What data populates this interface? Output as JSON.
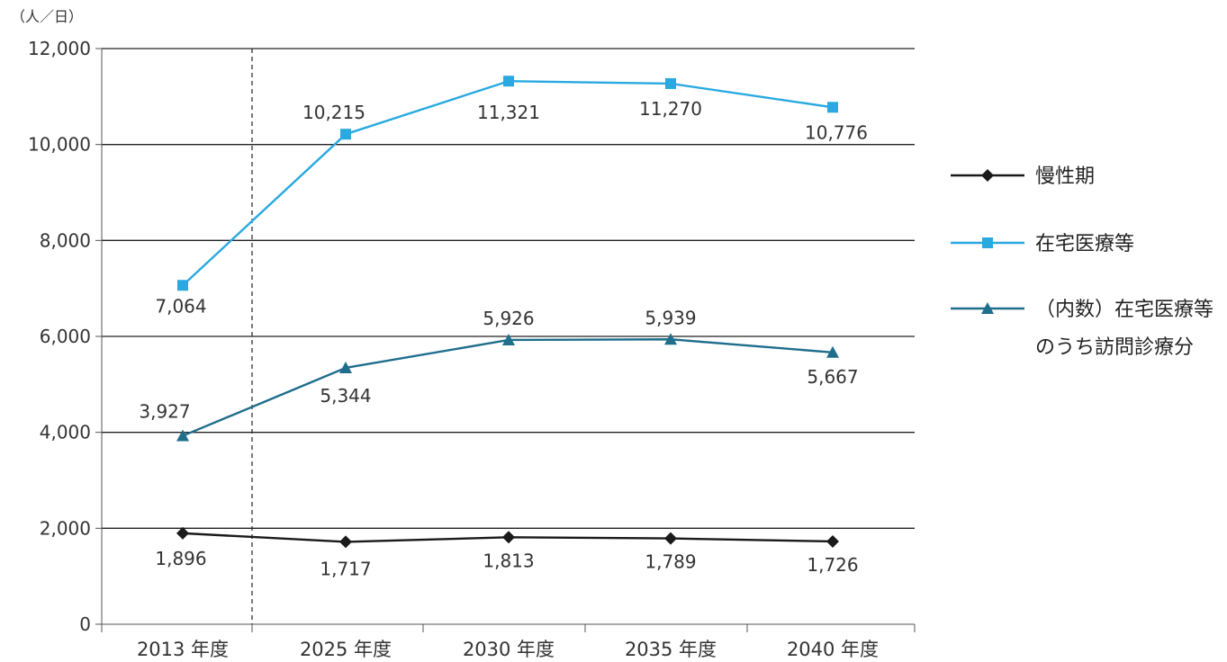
{
  "chart_data": {
    "type": "line",
    "unit_label": "（人／日）",
    "categories": [
      "2013 年度",
      "2025 年度",
      "2030 年度",
      "2035 年度",
      "2040 年度"
    ],
    "ylim": [
      0,
      12000
    ],
    "yticks": [
      0,
      2000,
      4000,
      6000,
      8000,
      10000,
      12000
    ],
    "ytick_labels": [
      "0",
      "2,000",
      "4,000",
      "6,000",
      "8,000",
      "10,000",
      "12,000"
    ],
    "grid": true,
    "legend_position": "right",
    "series": [
      {
        "name": "慢性期",
        "legend": [
          "慢性期"
        ],
        "marker": "diamond",
        "color": "#1a1a1a",
        "values": [
          1896,
          1717,
          1813,
          1789,
          1726
        ],
        "labels": [
          "1,896",
          "1,717",
          "1,813",
          "1,789",
          "1,726"
        ]
      },
      {
        "name": "在宅医療等",
        "legend": [
          "在宅医療等"
        ],
        "marker": "square",
        "color": "#29a9e0",
        "values": [
          7064,
          10215,
          11321,
          11270,
          10776
        ],
        "labels": [
          "7,064",
          "10,215",
          "11,321",
          "11,270",
          "10,776"
        ]
      },
      {
        "name": "（内数）在宅医療等のうち訪問診療分",
        "legend": [
          "（内数）在宅医療等",
          "のうち訪問診療分"
        ],
        "marker": "triangle",
        "color": "#1f6e8c",
        "values": [
          3927,
          5344,
          5926,
          5939,
          5667
        ],
        "labels": [
          "3,927",
          "5,344",
          "5,926",
          "5,939",
          "5,667"
        ]
      }
    ]
  }
}
